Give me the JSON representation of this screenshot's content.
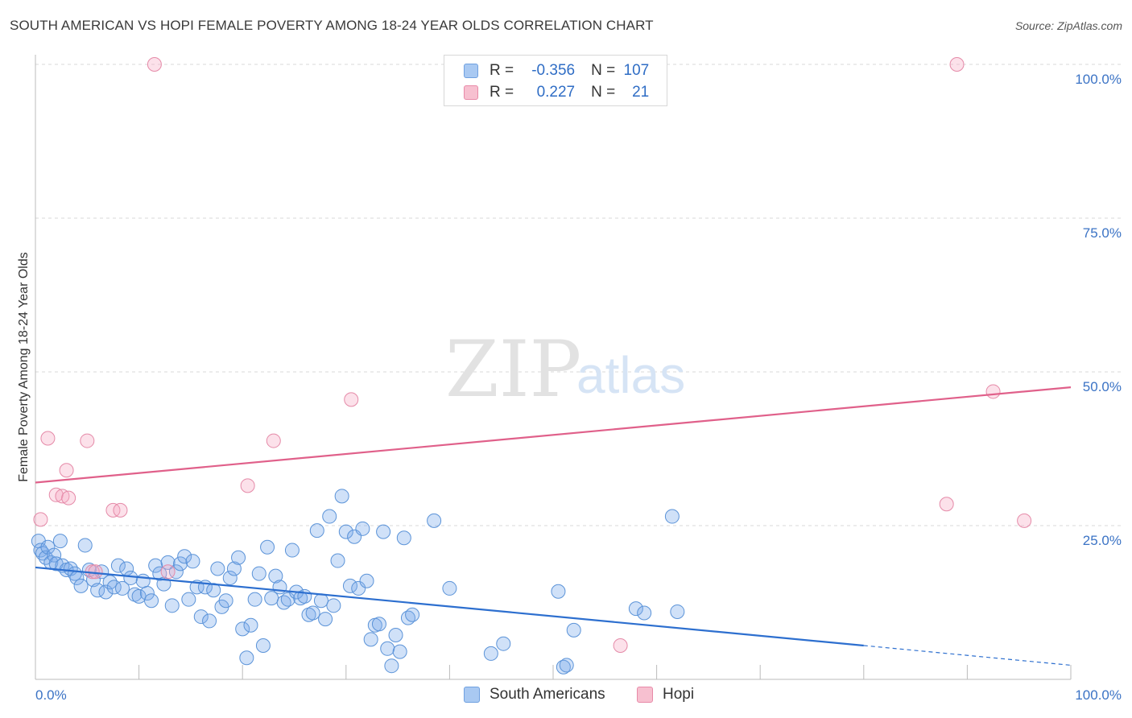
{
  "title": "SOUTH AMERICAN VS HOPI FEMALE POVERTY AMONG 18-24 YEAR OLDS CORRELATION CHART",
  "source": "Source: ZipAtlas.com",
  "watermark": {
    "zip": "ZIP",
    "atlas": "atlas"
  },
  "legend": {
    "rows": [
      {
        "r_label": "R =",
        "r_value": "-0.356",
        "n_label": "N =",
        "n_value": "107",
        "color": "#a9c9f2",
        "border": "#6fa0e0"
      },
      {
        "r_label": "R =",
        "r_value": "0.227",
        "n_label": "N =",
        "n_value": "21",
        "color": "#f7c0d0",
        "border": "#e88aa8"
      }
    ]
  },
  "bottom_legend": {
    "south": "South Americans",
    "hopi": "Hopi"
  },
  "chart_data": {
    "type": "scatter",
    "title": "SOUTH AMERICAN VS HOPI FEMALE POVERTY AMONG 18-24 YEAR OLDS CORRELATION CHART",
    "xlabel": "",
    "ylabel": "Female Poverty Among 18-24 Year Olds",
    "xlim": [
      0,
      100
    ],
    "ylim": [
      0,
      100
    ],
    "x_ticks": [
      "0.0%",
      "100.0%"
    ],
    "y_ticks": [
      "25.0%",
      "50.0%",
      "75.0%",
      "100.0%"
    ],
    "y_tick_values": [
      25,
      50,
      75,
      100
    ],
    "grid": true,
    "legend_position": "top-center",
    "colors": {
      "south_fill": "rgba(120,170,235,0.35)",
      "south_stroke": "#5b93d8",
      "south_line": "#2d6fcf",
      "hopi_fill": "rgba(245,170,195,0.35)",
      "hopi_stroke": "#e58aa8",
      "hopi_line": "#e0608a"
    },
    "series": [
      {
        "name": "South Americans",
        "trend": {
          "x1": 0,
          "y1": 18.2,
          "x2": 80,
          "y2": 5.5,
          "dash_to_x": 100,
          "dash_to_y": 2.3
        },
        "points": [
          [
            0.3,
            22.5
          ],
          [
            0.5,
            21.0
          ],
          [
            0.7,
            20.5
          ],
          [
            1.0,
            19.8
          ],
          [
            1.2,
            21.5
          ],
          [
            1.5,
            19.0
          ],
          [
            1.8,
            20.2
          ],
          [
            2.0,
            18.8
          ],
          [
            2.4,
            22.5
          ],
          [
            2.6,
            18.5
          ],
          [
            3.0,
            17.8
          ],
          [
            3.4,
            18.0
          ],
          [
            3.8,
            17.2
          ],
          [
            4.0,
            16.5
          ],
          [
            4.4,
            15.2
          ],
          [
            4.8,
            21.8
          ],
          [
            5.2,
            17.8
          ],
          [
            5.6,
            16.2
          ],
          [
            6.0,
            14.5
          ],
          [
            6.4,
            17.5
          ],
          [
            6.8,
            14.2
          ],
          [
            7.2,
            15.8
          ],
          [
            7.6,
            15.0
          ],
          [
            8.0,
            18.5
          ],
          [
            8.4,
            14.8
          ],
          [
            8.8,
            18.0
          ],
          [
            9.2,
            16.5
          ],
          [
            9.6,
            13.8
          ],
          [
            10.0,
            13.5
          ],
          [
            10.4,
            16.0
          ],
          [
            10.8,
            14.0
          ],
          [
            11.2,
            12.8
          ],
          [
            11.6,
            18.5
          ],
          [
            12.0,
            17.2
          ],
          [
            12.4,
            15.5
          ],
          [
            12.8,
            19.0
          ],
          [
            13.2,
            12.0
          ],
          [
            13.6,
            17.5
          ],
          [
            14.0,
            18.8
          ],
          [
            14.4,
            20.0
          ],
          [
            14.8,
            13.0
          ],
          [
            15.2,
            19.2
          ],
          [
            15.6,
            15.0
          ],
          [
            16.0,
            10.2
          ],
          [
            16.4,
            15.0
          ],
          [
            16.8,
            9.5
          ],
          [
            17.2,
            14.5
          ],
          [
            17.6,
            18.0
          ],
          [
            18.0,
            11.8
          ],
          [
            18.4,
            12.8
          ],
          [
            18.8,
            16.5
          ],
          [
            19.2,
            18.0
          ],
          [
            19.6,
            19.8
          ],
          [
            20.0,
            8.2
          ],
          [
            20.4,
            3.5
          ],
          [
            20.8,
            8.8
          ],
          [
            21.2,
            13.0
          ],
          [
            21.6,
            17.2
          ],
          [
            22.0,
            5.5
          ],
          [
            22.4,
            21.5
          ],
          [
            22.8,
            13.2
          ],
          [
            23.2,
            16.8
          ],
          [
            23.6,
            15.0
          ],
          [
            24.0,
            12.5
          ],
          [
            24.4,
            13.0
          ],
          [
            24.8,
            21.0
          ],
          [
            25.2,
            14.2
          ],
          [
            25.6,
            13.2
          ],
          [
            26.0,
            13.5
          ],
          [
            26.4,
            10.5
          ],
          [
            26.8,
            10.8
          ],
          [
            27.2,
            24.2
          ],
          [
            27.6,
            12.8
          ],
          [
            28.0,
            9.8
          ],
          [
            28.4,
            26.5
          ],
          [
            28.8,
            12.0
          ],
          [
            29.2,
            19.3
          ],
          [
            29.6,
            29.8
          ],
          [
            30.0,
            24.0
          ],
          [
            30.4,
            15.2
          ],
          [
            30.8,
            23.2
          ],
          [
            31.2,
            14.8
          ],
          [
            31.6,
            24.5
          ],
          [
            32.0,
            16.0
          ],
          [
            32.4,
            6.5
          ],
          [
            32.8,
            8.8
          ],
          [
            33.2,
            9.0
          ],
          [
            33.6,
            24.0
          ],
          [
            34.0,
            5.0
          ],
          [
            34.4,
            2.2
          ],
          [
            34.8,
            7.2
          ],
          [
            35.2,
            4.5
          ],
          [
            35.6,
            23.0
          ],
          [
            36.0,
            10.0
          ],
          [
            36.4,
            10.5
          ],
          [
            44.0,
            4.2
          ],
          [
            45.2,
            5.8
          ],
          [
            51.0,
            2.0
          ],
          [
            51.3,
            2.3
          ],
          [
            52.0,
            8.0
          ],
          [
            38.5,
            25.8
          ],
          [
            50.5,
            14.3
          ],
          [
            58.0,
            11.5
          ],
          [
            58.8,
            10.8
          ],
          [
            61.5,
            26.5
          ],
          [
            62.0,
            11.0
          ],
          [
            40.0,
            14.8
          ]
        ]
      },
      {
        "name": "Hopi",
        "trend": {
          "x1": 0,
          "y1": 32.0,
          "x2": 100,
          "y2": 47.5
        },
        "points": [
          [
            0.5,
            26.0
          ],
          [
            1.2,
            39.2
          ],
          [
            2.0,
            30.0
          ],
          [
            2.6,
            29.8
          ],
          [
            3.0,
            34.0
          ],
          [
            3.2,
            29.5
          ],
          [
            5.0,
            38.8
          ],
          [
            5.5,
            17.5
          ],
          [
            7.5,
            27.5
          ],
          [
            8.2,
            27.5
          ],
          [
            11.5,
            100.0
          ],
          [
            12.8,
            17.5
          ],
          [
            20.5,
            31.5
          ],
          [
            23.0,
            38.8
          ],
          [
            30.5,
            45.5
          ],
          [
            56.5,
            5.5
          ],
          [
            88.0,
            28.5
          ],
          [
            89.0,
            100.0
          ],
          [
            92.5,
            46.8
          ],
          [
            95.5,
            25.8
          ],
          [
            5.8,
            17.5
          ]
        ]
      }
    ]
  }
}
